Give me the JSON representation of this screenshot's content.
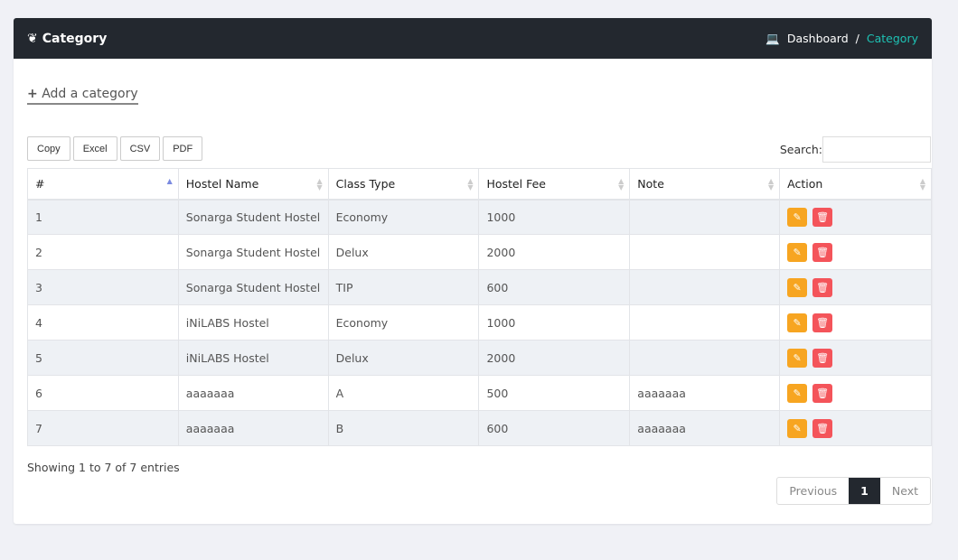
{
  "header": {
    "title": "Category",
    "breadcrumb": [
      "Dashboard",
      "Category"
    ]
  },
  "add_label": "Add a category",
  "export_buttons": [
    "Copy",
    "Excel",
    "CSV",
    "PDF"
  ],
  "search_label": "Search:",
  "search_value": "",
  "columns": [
    "#",
    "Hostel Name",
    "Class Type",
    "Hostel Fee",
    "Note",
    "Action"
  ],
  "rows": [
    [
      "1",
      "Sonarga Student Hostel",
      "Economy",
      "1000",
      ""
    ],
    [
      "2",
      "Sonarga Student Hostel",
      "Delux",
      "2000",
      ""
    ],
    [
      "3",
      "Sonarga Student Hostel",
      "TIP",
      "600",
      ""
    ],
    [
      "4",
      "iNiLABS Hostel",
      "Economy",
      "1000",
      ""
    ],
    [
      "5",
      "iNiLABS Hostel",
      "Delux",
      "2000",
      ""
    ],
    [
      "6",
      "aaaaaaa",
      "A",
      "500",
      "aaaaaaa"
    ],
    [
      "7",
      "aaaaaaa",
      "B",
      "600",
      "aaaaaaa"
    ]
  ],
  "info": "Showing 1 to 7 of 7 entries",
  "pagination": {
    "previous": "Previous",
    "current": "1",
    "next": "Next"
  },
  "colors": {
    "edit": "#f7a521",
    "delete": "#f4545a",
    "accent": "#1ec2b4"
  }
}
